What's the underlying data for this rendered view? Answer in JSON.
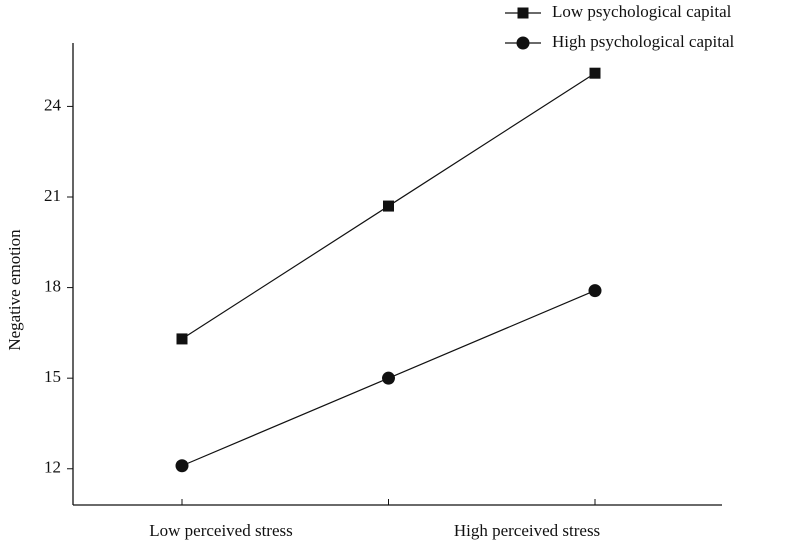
{
  "chart_data": {
    "type": "line",
    "y_label": "Negative emotion",
    "categories": [
      "Low perceived stress",
      null,
      "High perceived stress"
    ],
    "series": [
      {
        "name": "Low psychological capital",
        "color": "#111111",
        "marker": "square",
        "values": [
          16.3,
          20.7,
          25.1
        ]
      },
      {
        "name": "High psychological capital",
        "color": "#111111",
        "marker": "circle",
        "values": [
          12.1,
          15.0,
          17.9
        ]
      }
    ],
    "ylim": [
      10.8,
      26.1
    ],
    "yticks": [
      12,
      15,
      18,
      21,
      24
    ],
    "grid": false,
    "legend": "top-right"
  }
}
